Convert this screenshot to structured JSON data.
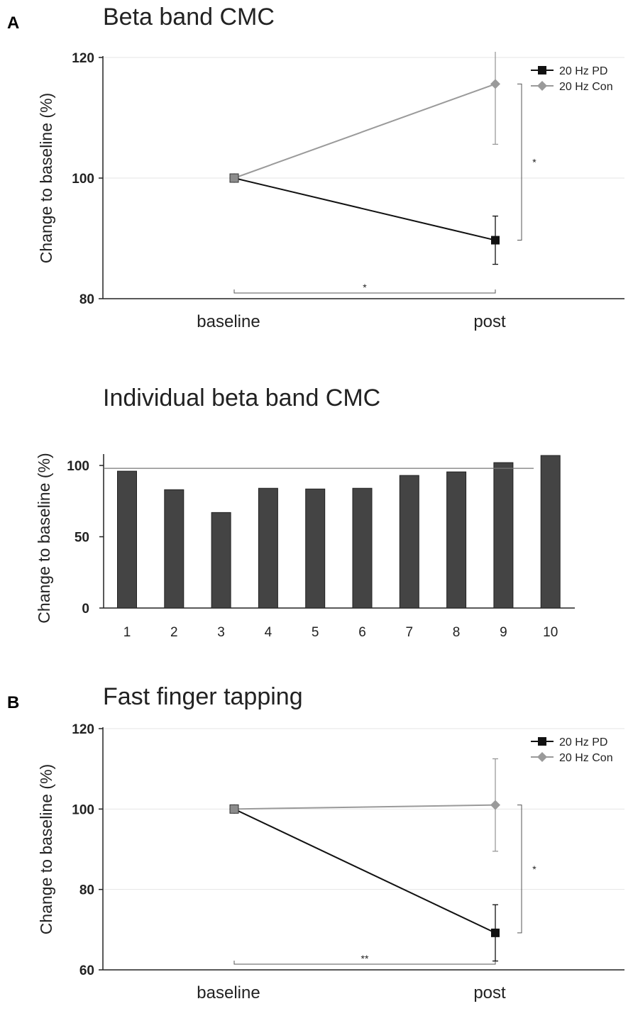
{
  "panel_labels": {
    "a": "A",
    "b": "B"
  },
  "colors": {
    "pd": "#111111",
    "con": "#9a9a9a",
    "bar": "#444444",
    "grid": "#e4e4e4",
    "bracket": "#555555"
  },
  "chart_data": [
    {
      "type": "line",
      "title": "Beta band CMC",
      "xlabel": "",
      "ylabel": "Change to baseline (%)",
      "categories": [
        "baseline",
        "post"
      ],
      "ylim": [
        80,
        120
      ],
      "yticks": [
        80,
        100,
        120
      ],
      "grid": true,
      "legend": "top-right",
      "series": [
        {
          "name": "20 Hz PD",
          "key": "pd",
          "marker": "square",
          "values": [
            100,
            89.7
          ],
          "err": [
            0,
            4
          ]
        },
        {
          "name": "20 Hz Con",
          "key": "con",
          "marker": "diamond",
          "values": [
            100,
            115.6
          ],
          "err": [
            0,
            10
          ]
        }
      ],
      "significance": {
        "horizontal": "*",
        "vertical": "*"
      }
    },
    {
      "type": "bar",
      "title": "Individual beta band CMC",
      "xlabel": "",
      "ylabel": "Change to baseline (%)",
      "categories": [
        "1",
        "2",
        "3",
        "4",
        "5",
        "6",
        "7",
        "8",
        "9",
        "10"
      ],
      "values": [
        96,
        83,
        67,
        84,
        83.5,
        84,
        93,
        95.5,
        102,
        107
      ],
      "ylim": [
        0,
        108
      ],
      "yticks": [
        0,
        50,
        100
      ],
      "reference_line": 98
    },
    {
      "type": "line",
      "title": "Fast finger tapping",
      "xlabel": "",
      "ylabel": "Change to baseline (%)",
      "categories": [
        "baseline",
        "post"
      ],
      "ylim": [
        60,
        120
      ],
      "yticks": [
        60,
        80,
        100,
        120
      ],
      "grid": true,
      "legend": "top-right",
      "series": [
        {
          "name": "20 Hz PD",
          "key": "pd",
          "marker": "square",
          "values": [
            100,
            69.2
          ],
          "err": [
            0,
            7
          ]
        },
        {
          "name": "20 Hz Con",
          "key": "con",
          "marker": "diamond",
          "values": [
            100,
            101
          ],
          "err": [
            0,
            11.5
          ]
        }
      ],
      "significance": {
        "horizontal": "**",
        "vertical": "*"
      }
    }
  ]
}
